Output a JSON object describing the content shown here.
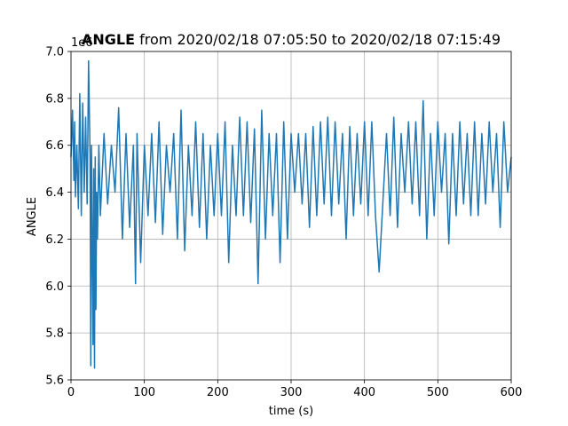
{
  "chart_data": {
    "type": "line",
    "title_bold": "ANGLE",
    "title_rest": " from 2020/02/18 07:05:50 to 2020/02/18 07:15:49",
    "xlabel": "time (s)",
    "ylabel": "ANGLE",
    "offset_label": "1e6",
    "xlim": [
      0,
      600
    ],
    "ylim": [
      5.6,
      7.0
    ],
    "x_ticks": [
      0,
      100,
      200,
      300,
      400,
      500,
      600
    ],
    "y_ticks": [
      5.6,
      5.8,
      6.0,
      6.2,
      6.4,
      6.6,
      6.8,
      7.0
    ],
    "x_tick_labels": [
      "0",
      "100",
      "200",
      "300",
      "400",
      "500",
      "600"
    ],
    "y_tick_labels": [
      "5.6",
      "5.8",
      "6.0",
      "6.2",
      "6.4",
      "6.6",
      "6.8",
      "7.0"
    ],
    "grid": true,
    "line_color": "#1f77b4",
    "series": [
      {
        "x": [
          0,
          2,
          4,
          5,
          6,
          8,
          10,
          12,
          14,
          16,
          18,
          20,
          22,
          24,
          26,
          27,
          28,
          30,
          31,
          32,
          33,
          34,
          35,
          36,
          38,
          40,
          45,
          50,
          55,
          60,
          65,
          70,
          75,
          80,
          85,
          88,
          90,
          95,
          100,
          105,
          110,
          115,
          120,
          125,
          130,
          135,
          140,
          145,
          150,
          155,
          160,
          165,
          170,
          175,
          180,
          185,
          190,
          195,
          200,
          205,
          210,
          215,
          220,
          225,
          230,
          235,
          240,
          245,
          250,
          255,
          260,
          265,
          270,
          275,
          280,
          285,
          290,
          295,
          300,
          305,
          310,
          315,
          320,
          325,
          330,
          335,
          340,
          345,
          350,
          355,
          360,
          365,
          370,
          375,
          380,
          385,
          390,
          395,
          400,
          405,
          410,
          415,
          420,
          425,
          430,
          435,
          440,
          445,
          450,
          455,
          460,
          465,
          470,
          475,
          480,
          485,
          490,
          495,
          500,
          505,
          510,
          515,
          520,
          525,
          530,
          535,
          540,
          545,
          550,
          555,
          560,
          565,
          570,
          575,
          580,
          585,
          590,
          595,
          600
        ],
        "values": [
          6.55,
          6.75,
          6.45,
          6.7,
          6.38,
          6.6,
          6.33,
          6.82,
          6.3,
          6.78,
          6.4,
          6.72,
          6.35,
          6.96,
          6.55,
          5.66,
          6.6,
          5.75,
          6.5,
          5.65,
          6.55,
          5.9,
          6.4,
          6.2,
          6.6,
          6.3,
          6.65,
          6.35,
          6.6,
          6.4,
          6.76,
          6.2,
          6.65,
          6.25,
          6.6,
          6.01,
          6.65,
          6.1,
          6.6,
          6.3,
          6.65,
          6.27,
          6.7,
          6.22,
          6.6,
          6.4,
          6.65,
          6.2,
          6.75,
          6.15,
          6.6,
          6.3,
          6.7,
          6.25,
          6.65,
          6.2,
          6.6,
          6.3,
          6.65,
          6.3,
          6.7,
          6.1,
          6.6,
          6.3,
          6.72,
          6.3,
          6.7,
          6.27,
          6.67,
          6.01,
          6.75,
          6.2,
          6.65,
          6.3,
          6.65,
          6.1,
          6.7,
          6.2,
          6.65,
          6.4,
          6.65,
          6.35,
          6.65,
          6.25,
          6.68,
          6.3,
          6.7,
          6.35,
          6.72,
          6.3,
          6.7,
          6.35,
          6.65,
          6.2,
          6.68,
          6.3,
          6.65,
          6.35,
          6.7,
          6.3,
          6.7,
          6.3,
          6.06,
          6.35,
          6.65,
          6.3,
          6.72,
          6.25,
          6.65,
          6.4,
          6.7,
          6.35,
          6.7,
          6.3,
          6.79,
          6.2,
          6.65,
          6.3,
          6.7,
          6.4,
          6.65,
          6.18,
          6.65,
          6.3,
          6.7,
          6.35,
          6.65,
          6.3,
          6.7,
          6.3,
          6.65,
          6.35,
          6.7,
          6.4,
          6.65,
          6.25,
          6.7,
          6.4,
          6.55
        ]
      }
    ]
  }
}
